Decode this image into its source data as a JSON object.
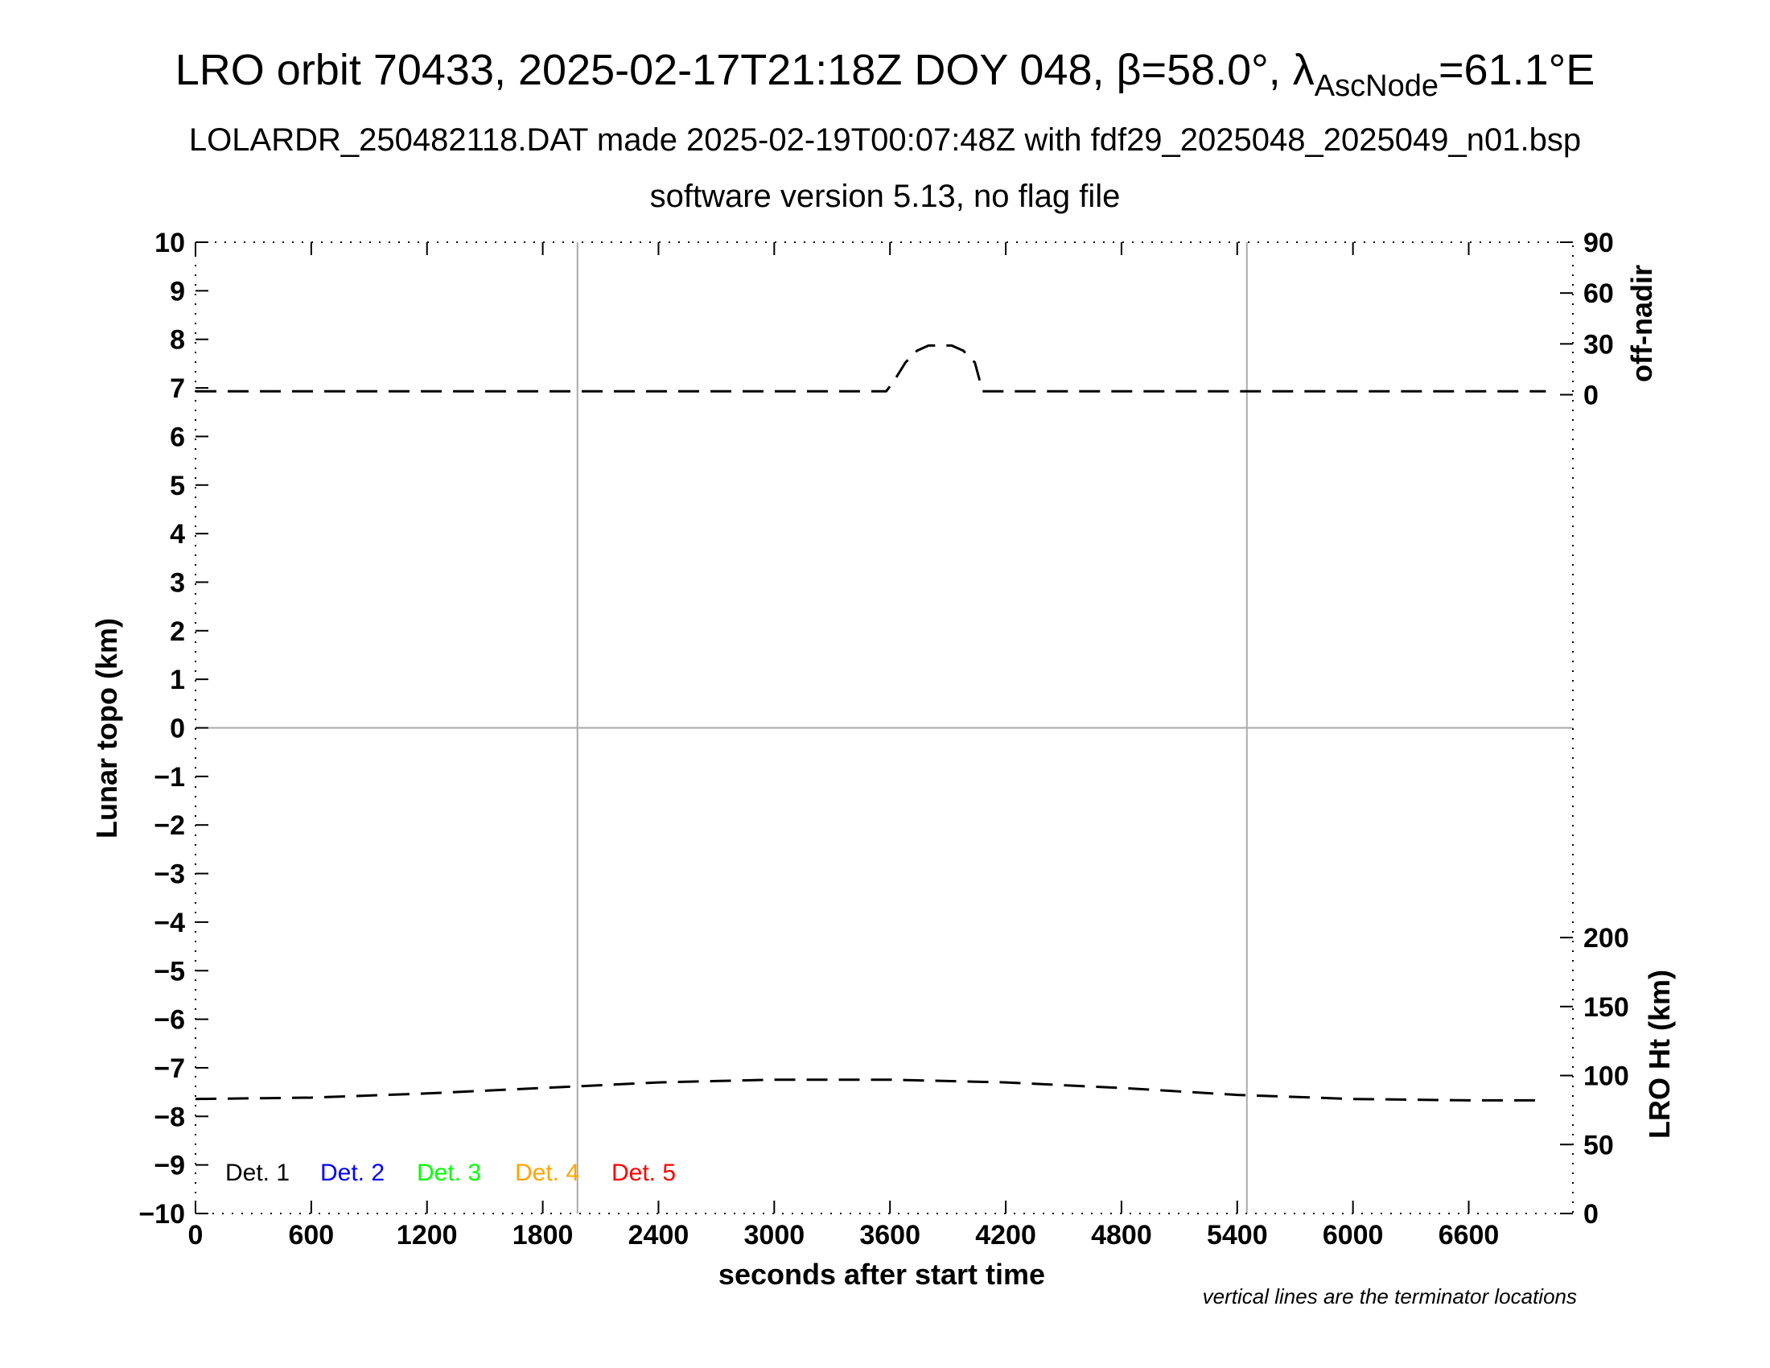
{
  "header": {
    "title_main": "LRO orbit 70433, 2025-02-17T21:18Z DOY 048, β=58.0°, λ",
    "title_sub_script": "AscNode",
    "title_tail": "=61.1°E",
    "subtitle1": "LOLARDR_250482118.DAT made 2025-02-19T00:07:48Z with fdf29_2025048_2025049_n01.bsp",
    "subtitle2": "software version 5.13, no flag file"
  },
  "chart_data": {
    "type": "line",
    "xlabel": "seconds after start time",
    "ylabel_left": "Lunar topo (km)",
    "ylabel_right_top": "off-nadir",
    "ylabel_right_bottom": "LRO Ht (km)",
    "note": "vertical lines are the terminator locations",
    "xlim": [
      0,
      7140
    ],
    "ylim_left": [
      -10,
      10
    ],
    "x_ticks": [
      0,
      600,
      1200,
      1800,
      2400,
      3000,
      3600,
      4200,
      4800,
      5400,
      6000,
      6600
    ],
    "x_tick_labels": [
      "0",
      "600",
      "1200",
      "1800",
      "2400",
      "3000",
      "3600",
      "4200",
      "4800",
      "5400",
      "6000",
      "6600"
    ],
    "y_ticks_left": [
      10,
      9,
      8,
      7,
      6,
      5,
      4,
      3,
      2,
      1,
      0,
      -1,
      -2,
      -3,
      -4,
      -5,
      -6,
      -7,
      -8,
      -9,
      -10
    ],
    "y_tick_labels_left": [
      "10",
      "9",
      "8",
      "7",
      "6",
      "5",
      "4",
      "3",
      "2",
      "1",
      "0",
      "−1",
      "−2",
      "−3",
      "−4",
      "−5",
      "−6",
      "−7",
      "−8",
      "−9",
      "−10"
    ],
    "right_top_ticks": [
      90,
      60,
      30,
      0
    ],
    "right_top_tick_labels": [
      "90",
      "60",
      "30",
      "0"
    ],
    "right_bottom_ticks": [
      200,
      150,
      100,
      50,
      0
    ],
    "right_bottom_tick_labels": [
      "200",
      "150",
      "100",
      "50",
      "0"
    ],
    "terminator_x": [
      1980,
      5450
    ],
    "legend": [
      {
        "label": "Det. 1",
        "color": "#000000"
      },
      {
        "label": "Det. 2",
        "color": "#0000ff"
      },
      {
        "label": "Det. 3",
        "color": "#00ff00"
      },
      {
        "label": "Det. 4",
        "color": "#ffa500"
      },
      {
        "label": "Det. 5",
        "color": "#ff0000"
      }
    ],
    "series": [
      {
        "name": "off-nadir",
        "style": "dashed",
        "x": [
          0,
          600,
          1200,
          1800,
          2400,
          3000,
          3580,
          3620,
          3680,
          3740,
          3800,
          3860,
          3920,
          3980,
          4040,
          4080,
          4200,
          4800,
          5400,
          6000,
          6600,
          7000
        ],
        "y": [
          2,
          2,
          2,
          2,
          2,
          2,
          2,
          8,
          19,
          26,
          29,
          29,
          29,
          26,
          19,
          2,
          2,
          2,
          2,
          2,
          2,
          2
        ]
      },
      {
        "name": "LRO Ht",
        "style": "dashed",
        "x": [
          0,
          600,
          1200,
          1800,
          2400,
          3000,
          3600,
          4200,
          4800,
          5400,
          6000,
          6600,
          7000
        ],
        "y": [
          83,
          84,
          87,
          91,
          95,
          97,
          97,
          95,
          91,
          86,
          83,
          82,
          82
        ]
      }
    ]
  }
}
